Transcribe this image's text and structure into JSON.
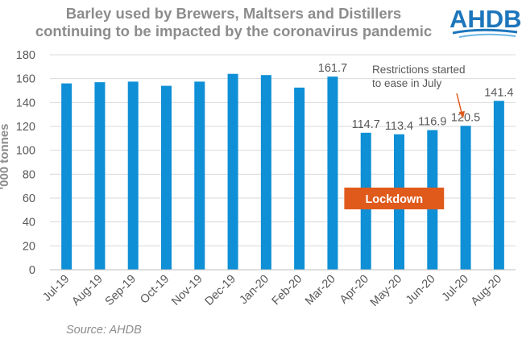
{
  "title_line1": "Barley used by Brewers, Maltsers and Distillers",
  "title_line2": "continuing to be impacted by the coronavirus pandemic",
  "logo_text": "AHDB",
  "source": "Source: AHDB",
  "colors": {
    "bar": "#0e8fd6",
    "label": "#595959",
    "axis": "#7f7f7f",
    "grid": "#d9d9d9",
    "lockdown": "#e05a1c",
    "logo": "#1d76bb",
    "arrow": "#e05a1c"
  },
  "annotations": {
    "restrictions_line1": "Restrictions started",
    "restrictions_line2": "to ease in July",
    "lockdown": "Lockdown"
  },
  "chart_data": {
    "type": "bar",
    "title": "Barley used by Brewers, Maltsers and Distillers continuing to be impacted by the coronavirus pandemic",
    "ylabel": "'000 tonnes",
    "xlabel": "",
    "ylim": [
      0,
      180
    ],
    "yticks": [
      0,
      20,
      40,
      60,
      80,
      100,
      120,
      140,
      160,
      180
    ],
    "grid": true,
    "categories": [
      "Jul-19",
      "Aug-19",
      "Sep-19",
      "Oct-19",
      "Nov-19",
      "Dec-19",
      "Jan-20",
      "Feb-20",
      "Mar-20",
      "Apr-20",
      "May-20",
      "Jun-20",
      "Jul-20",
      "Aug-20"
    ],
    "values": [
      156,
      157,
      157.5,
      154,
      157.5,
      164,
      163,
      152.5,
      161.7,
      114.7,
      113.4,
      116.9,
      120.5,
      141.4
    ],
    "data_labels": [
      "",
      "",
      "",
      "",
      "",
      "",
      "",
      "",
      "161.7",
      "114.7",
      "113.4",
      "116.9",
      "120.5",
      "141.4"
    ]
  }
}
